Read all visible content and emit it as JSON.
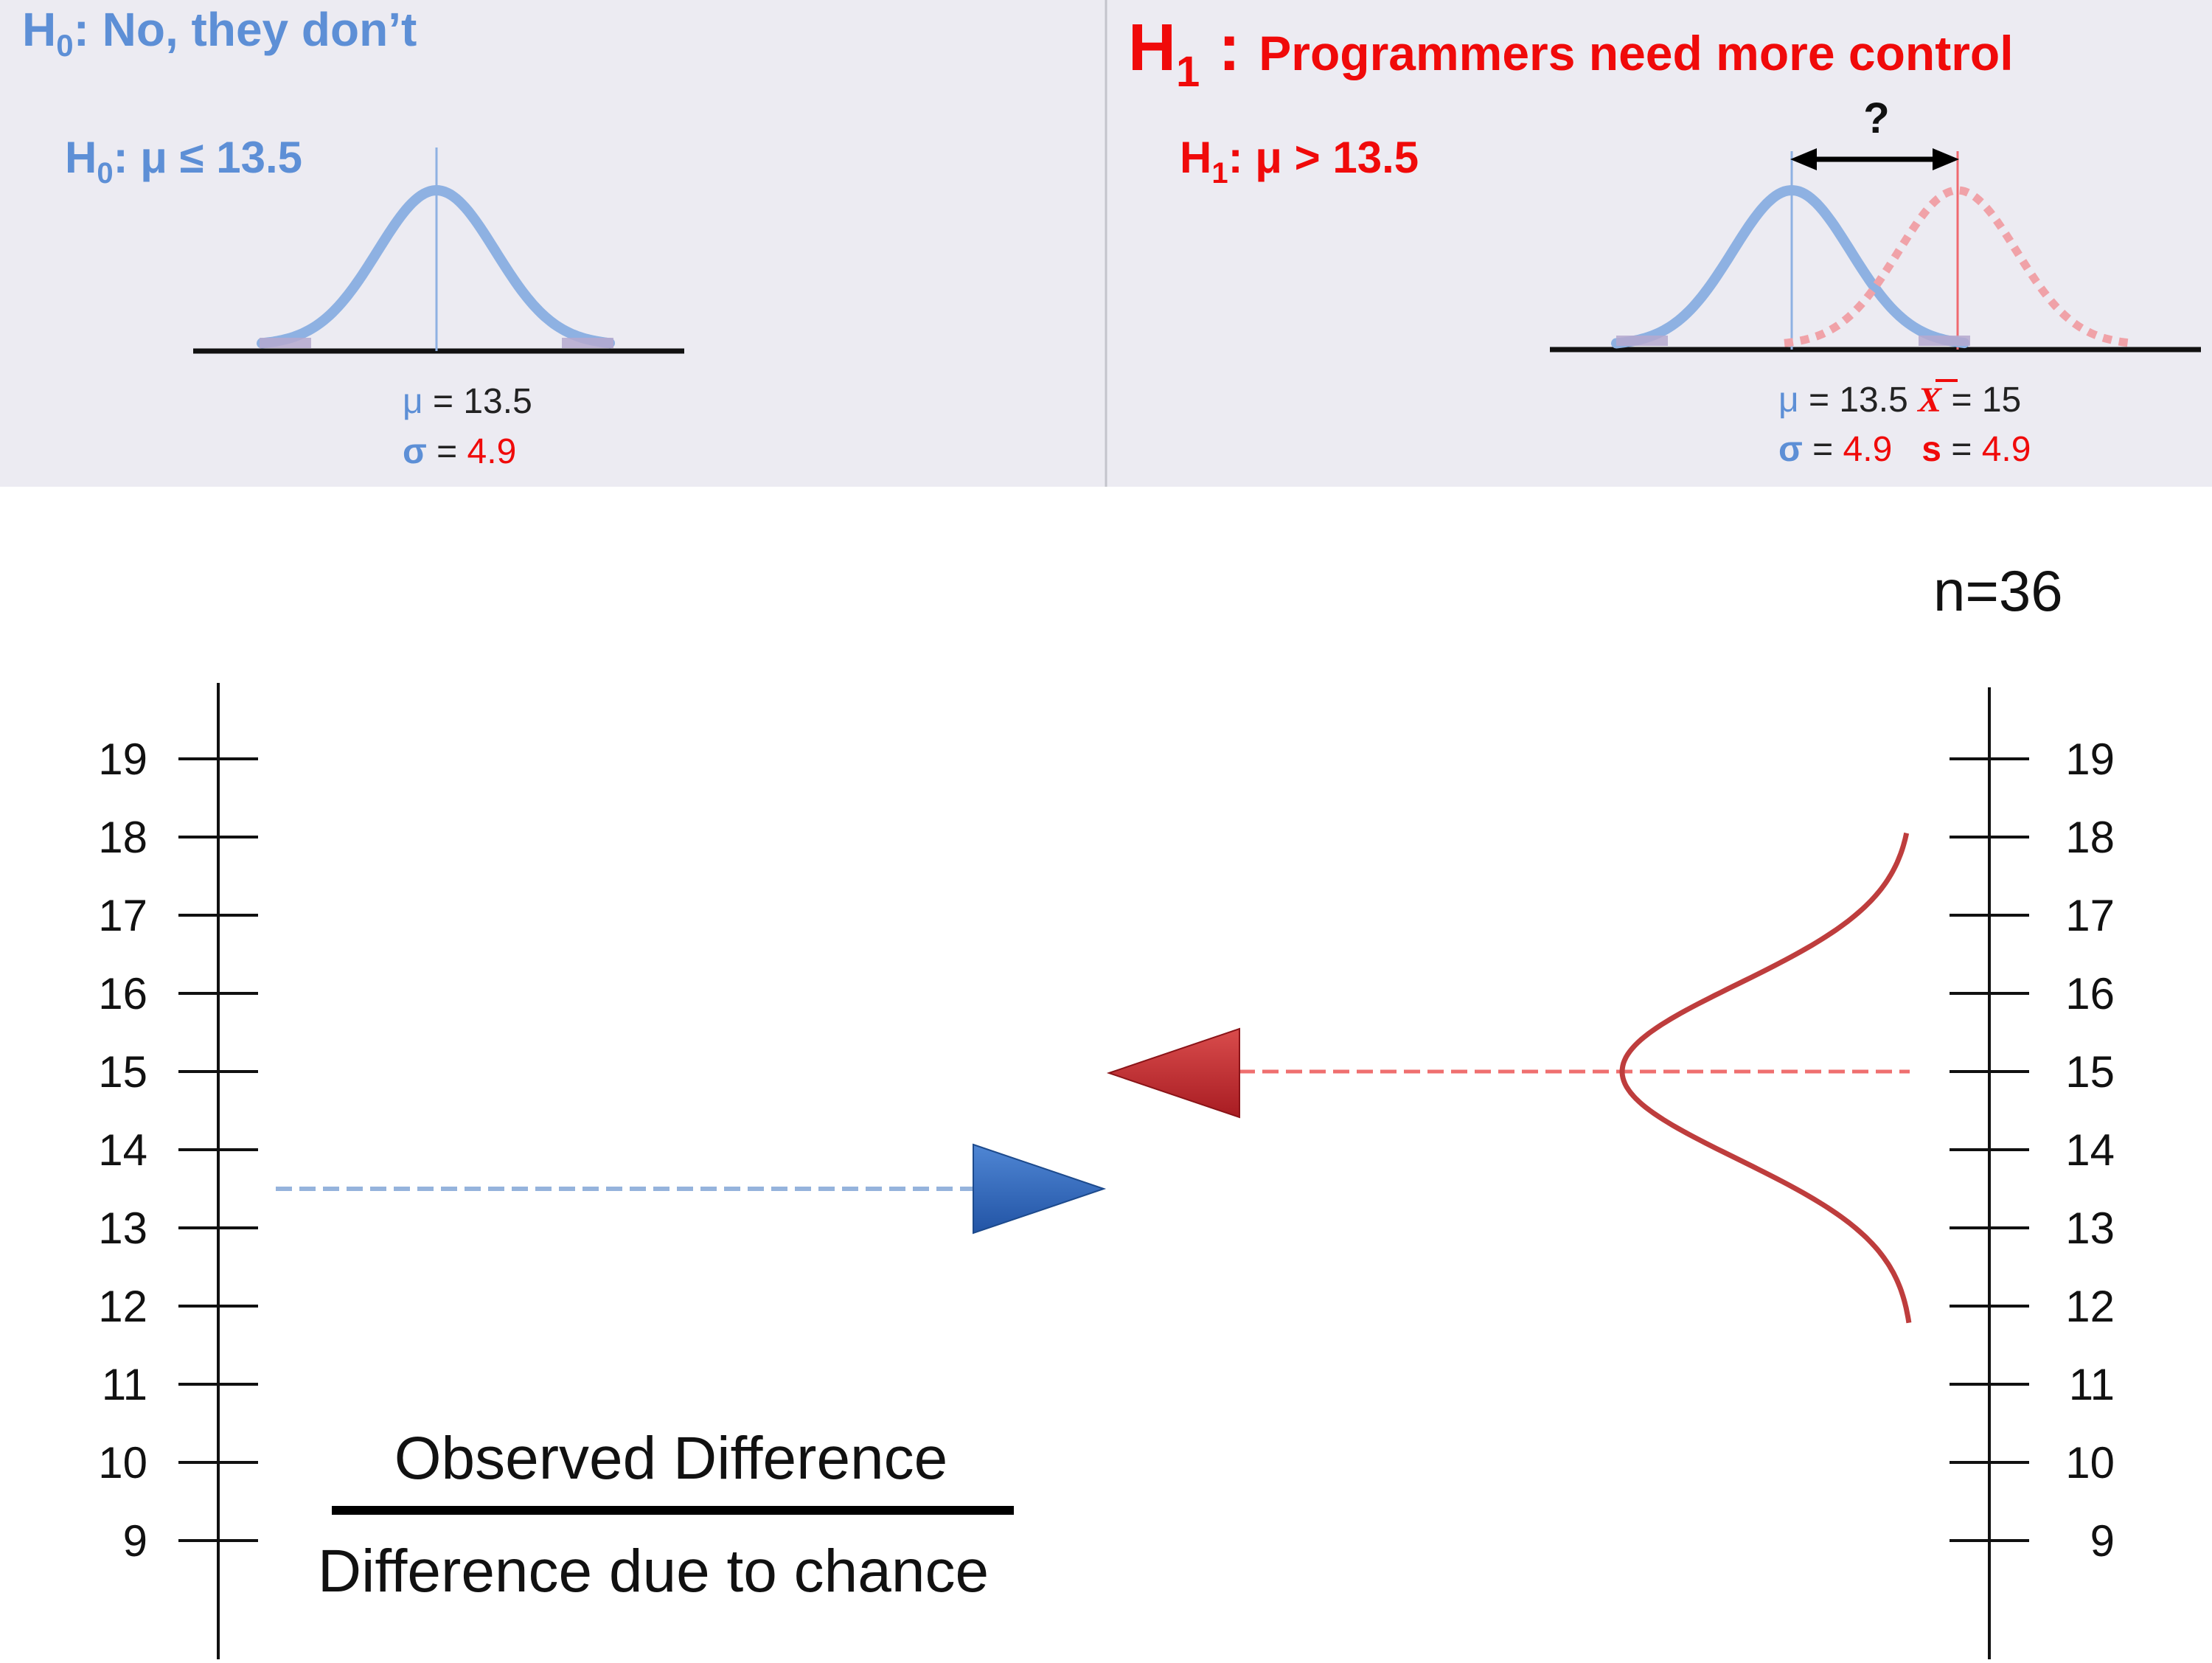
{
  "colors": {
    "panel_bg": "#ecebf2",
    "panel_divider": "#c4c4cc",
    "null_blue": "#5d8fd6",
    "curve_blue": "#8eb1e2",
    "alt_red": "#f00a0a",
    "curve_red_dotted": "#f0a2a8",
    "red_curve": "#be3d3d",
    "red_dash": "#ef6f6f",
    "blue_dash": "#95b3dc",
    "blue_triangle": "#2f65b6",
    "red_triangle": "#c0282c",
    "axis": "#111111"
  },
  "null_panel": {
    "title_letter": "H",
    "title_sub": "0",
    "title_text": ": No, they don’t",
    "hyp_letter": "H",
    "hyp_sub": "0",
    "hyp_text": ": μ ≤ 13.5",
    "mu_symbol": "μ",
    "mu_eq": " = 13.5",
    "sigma_symbol": "σ",
    "sigma_eq": " = ",
    "sigma_value": "4.9"
  },
  "alt_panel": {
    "title_letter": "H",
    "title_sub": "1",
    "title_colon": " : ",
    "title_text": "Programmers need more control",
    "hyp_letter": "H",
    "hyp_sub": "1",
    "hyp_text": ": μ > 13.5",
    "question_mark": "?",
    "mu_symbol": "μ",
    "mu_eq": " = 13.5 ",
    "xbar_symbol": "X",
    "xbar_eq": " = 15",
    "sigma_symbol": "σ",
    "sigma_eq": " = ",
    "sigma_value": "4.9",
    "s_symbol": "s",
    "s_eq": " = ",
    "s_value": "4.9"
  },
  "sample_size": "n=36",
  "axis_ticks": [
    "19",
    "18",
    "17",
    "16",
    "15",
    "14",
    "13",
    "12",
    "11",
    "10",
    "9"
  ],
  "null_mean_value": 13.5,
  "sample_mean_value": 15,
  "fraction": {
    "numerator": "Observed Difference",
    "denominator": "Difference due to chance"
  }
}
